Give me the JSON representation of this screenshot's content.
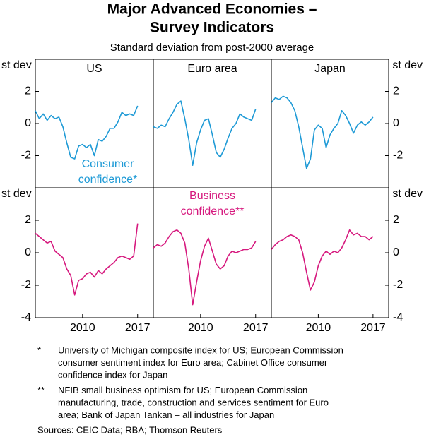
{
  "title_lines": [
    "Major Advanced Economies –",
    "Survey Indicators"
  ],
  "subtitle": "Standard deviation from post-2000 average",
  "notes": [
    {
      "marker": "*",
      "lines": [
        "University of Michigan composite index for US; European Commission",
        "consumer sentiment index for Euro area; Cabinet Office consumer",
        "confidence index for Japan"
      ]
    },
    {
      "marker": "**",
      "lines": [
        "NFIB small business optimism for US; European Commission",
        "manufacturing, trade, construction and services sentiment for Euro",
        "area; Bank of Japan Tankan – all industries for Japan"
      ]
    }
  ],
  "sources": "Sources:  CEIC Data; RBA; Thomson Reuters",
  "chart_data": [
    {
      "type": "line",
      "title": "US",
      "ylabel": "st dev",
      "yaxis_side": "left",
      "ylim": [
        -4,
        4
      ],
      "yticks": [
        -2,
        0,
        2
      ],
      "xlim": [
        2004,
        2019
      ],
      "x": [
        2004,
        2004.5,
        2005,
        2005.5,
        2006,
        2006.5,
        2007,
        2007.5,
        2008,
        2008.5,
        2009,
        2009.5,
        2010,
        2010.5,
        2011,
        2011.5,
        2012,
        2012.5,
        2013,
        2013.5,
        2014,
        2014.5,
        2015,
        2015.5,
        2016,
        2016.5,
        2017
      ],
      "series": [
        {
          "color": "#1e9ad6",
          "values": [
            0.8,
            0.3,
            0.6,
            0.2,
            0.5,
            0.3,
            0.4,
            -0.2,
            -1.2,
            -2.1,
            -2.2,
            -1.4,
            -1.3,
            -1.5,
            -1.3,
            -2.0,
            -1.0,
            -1.1,
            -0.8,
            -0.3,
            -0.3,
            0.1,
            0.7,
            0.5,
            0.6,
            0.5,
            1.1
          ]
        }
      ],
      "annotation": [
        "Consumer",
        "confidence*"
      ]
    },
    {
      "type": "line",
      "title": "Euro area",
      "ylim": [
        -4,
        4
      ],
      "xlim": [
        2004,
        2019
      ],
      "x": [
        2004,
        2004.5,
        2005,
        2005.5,
        2006,
        2006.5,
        2007,
        2007.5,
        2008,
        2008.5,
        2009,
        2009.5,
        2010,
        2010.5,
        2011,
        2011.5,
        2012,
        2012.5,
        2013,
        2013.5,
        2014,
        2014.5,
        2015,
        2015.5,
        2016,
        2016.5,
        2017
      ],
      "series": [
        {
          "color": "#1e9ad6",
          "values": [
            -0.2,
            -0.3,
            -0.1,
            -0.2,
            0.3,
            0.7,
            1.2,
            1.4,
            0.3,
            -1.0,
            -2.6,
            -1.2,
            -0.4,
            0.2,
            0.3,
            -0.7,
            -1.8,
            -2.1,
            -1.6,
            -0.9,
            -0.3,
            0.0,
            0.6,
            0.4,
            0.3,
            0.2,
            0.9
          ]
        }
      ]
    },
    {
      "type": "line",
      "title": "Japan",
      "ylabel": "st dev",
      "yaxis_side": "right",
      "ylim": [
        -4,
        4
      ],
      "yticks": [
        -2,
        0,
        2
      ],
      "xlim": [
        2004,
        2019
      ],
      "x": [
        2004,
        2004.5,
        2005,
        2005.5,
        2006,
        2006.5,
        2007,
        2007.5,
        2008,
        2008.5,
        2009,
        2009.5,
        2010,
        2010.5,
        2011,
        2011.5,
        2012,
        2012.5,
        2013,
        2013.5,
        2014,
        2014.5,
        2015,
        2015.5,
        2016,
        2016.5,
        2017
      ],
      "series": [
        {
          "color": "#1e9ad6",
          "values": [
            1.3,
            1.6,
            1.5,
            1.7,
            1.6,
            1.3,
            0.8,
            -0.2,
            -1.5,
            -2.8,
            -2.2,
            -0.4,
            -0.1,
            -0.3,
            -1.5,
            -0.7,
            -0.3,
            0.0,
            0.8,
            0.5,
            0.0,
            -0.6,
            -0.1,
            0.1,
            -0.1,
            0.1,
            0.4
          ]
        }
      ]
    },
    {
      "type": "line",
      "ylabel": "st dev",
      "yaxis_side": "left",
      "ylim": [
        -4,
        4
      ],
      "yticks": [
        -4,
        -2,
        0,
        2
      ],
      "xlim": [
        2004,
        2019
      ],
      "xticks": [
        2010,
        2017
      ],
      "x": [
        2004,
        2004.5,
        2005,
        2005.5,
        2006,
        2006.5,
        2007,
        2007.5,
        2008,
        2008.5,
        2009,
        2009.5,
        2010,
        2010.5,
        2011,
        2011.5,
        2012,
        2012.5,
        2013,
        2013.5,
        2014,
        2014.5,
        2015,
        2015.5,
        2016,
        2016.5,
        2017
      ],
      "series": [
        {
          "color": "#d6197e",
          "values": [
            1.2,
            1.0,
            0.8,
            0.6,
            0.7,
            0.1,
            -0.1,
            -0.3,
            -1.0,
            -1.4,
            -2.6,
            -1.7,
            -1.6,
            -1.3,
            -1.2,
            -1.5,
            -1.1,
            -1.3,
            -1.0,
            -0.8,
            -0.6,
            -0.3,
            -0.2,
            -0.3,
            -0.4,
            -0.2,
            1.8
          ]
        }
      ]
    },
    {
      "type": "line",
      "ylim": [
        -4,
        4
      ],
      "xlim": [
        2004,
        2019
      ],
      "xticks": [
        2010,
        2017
      ],
      "x": [
        2004,
        2004.5,
        2005,
        2005.5,
        2006,
        2006.5,
        2007,
        2007.5,
        2008,
        2008.5,
        2009,
        2009.5,
        2010,
        2010.5,
        2011,
        2011.5,
        2012,
        2012.5,
        2013,
        2013.5,
        2014,
        2014.5,
        2015,
        2015.5,
        2016,
        2016.5,
        2017
      ],
      "series": [
        {
          "color": "#d6197e",
          "values": [
            0.3,
            0.5,
            0.4,
            0.6,
            1.0,
            1.3,
            1.4,
            1.2,
            0.6,
            -1.0,
            -3.2,
            -1.8,
            -0.5,
            0.4,
            0.9,
            0.1,
            -0.7,
            -1.0,
            -0.8,
            -0.2,
            0.1,
            0.0,
            0.1,
            0.2,
            0.2,
            0.3,
            0.7
          ]
        }
      ],
      "annotation": [
        "Business",
        "confidence**"
      ]
    },
    {
      "type": "line",
      "ylabel": "st dev",
      "yaxis_side": "right",
      "ylim": [
        -4,
        4
      ],
      "yticks": [
        -4,
        -2,
        0,
        2
      ],
      "xlim": [
        2004,
        2019
      ],
      "xticks": [
        2010,
        2017
      ],
      "x": [
        2004,
        2004.5,
        2005,
        2005.5,
        2006,
        2006.5,
        2007,
        2007.5,
        2008,
        2008.5,
        2009,
        2009.5,
        2010,
        2010.5,
        2011,
        2011.5,
        2012,
        2012.5,
        2013,
        2013.5,
        2014,
        2014.5,
        2015,
        2015.5,
        2016,
        2016.5,
        2017
      ],
      "series": [
        {
          "color": "#d6197e",
          "values": [
            0.2,
            0.5,
            0.7,
            0.8,
            1.0,
            1.1,
            1.0,
            0.8,
            0.0,
            -1.2,
            -2.3,
            -1.8,
            -0.8,
            -0.2,
            0.1,
            -0.1,
            0.1,
            0.0,
            0.3,
            0.8,
            1.4,
            1.1,
            1.2,
            1.0,
            1.0,
            0.8,
            1.0
          ]
        }
      ]
    }
  ]
}
